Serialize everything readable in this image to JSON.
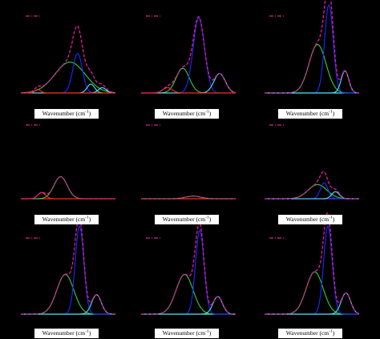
{
  "chart_data": [
    {
      "type": "line",
      "xlabel": "Wavenumber (cm",
      "xlabel_sup": "-1",
      "legend_visible": true,
      "baseline": "orange-red",
      "peaks": [
        {
          "color": "green",
          "center": 0.52,
          "width": 0.16,
          "height": 0.35
        },
        {
          "color": "blue",
          "center": 0.6,
          "width": 0.05,
          "height": 0.45
        },
        {
          "color": "cyan",
          "center": 0.74,
          "width": 0.04,
          "height": 0.1
        },
        {
          "color": "cyan",
          "center": 0.86,
          "width": 0.04,
          "height": 0.06
        },
        {
          "color": "red",
          "center": 0.18,
          "width": 0.03,
          "height": 0.04
        }
      ]
    },
    {
      "type": "line",
      "xlabel": "Wavenumber (cm",
      "xlabel_sup": "-1",
      "legend_visible": true,
      "baseline": "red",
      "peaks": [
        {
          "color": "green",
          "center": 0.44,
          "width": 0.07,
          "height": 0.28
        },
        {
          "color": "blue",
          "center": 0.61,
          "width": 0.06,
          "height": 0.85
        },
        {
          "color": "cyan",
          "center": 0.83,
          "width": 0.06,
          "height": 0.22
        },
        {
          "color": "red",
          "center": 0.28,
          "width": 0.05,
          "height": 0.06
        }
      ]
    },
    {
      "type": "line",
      "xlabel": "Wavenumber (cm",
      "xlabel_sup": "-1",
      "legend_visible": true,
      "baseline": "cyan",
      "peaks": [
        {
          "color": "green",
          "center": 0.56,
          "width": 0.09,
          "height": 0.55
        },
        {
          "color": "blue",
          "center": 0.68,
          "width": 0.045,
          "height": 1.0
        },
        {
          "color": "cyan",
          "center": 0.85,
          "width": 0.04,
          "height": 0.25
        }
      ]
    },
    {
      "type": "line",
      "xlabel": "Wavenumber (cm",
      "xlabel_sup": "-1",
      "legend_visible": true,
      "baseline": "red",
      "peaks": [
        {
          "color": "green",
          "center": 0.42,
          "width": 0.07,
          "height": 0.25
        },
        {
          "color": "red",
          "center": 0.22,
          "width": 0.04,
          "height": 0.07
        }
      ]
    },
    {
      "type": "line",
      "xlabel": "Wavenumber (cm",
      "xlabel_sup": "-1",
      "legend_visible": true,
      "baseline": "red",
      "peaks": [
        {
          "color": "green",
          "center": 0.55,
          "width": 0.08,
          "height": 0.03
        }
      ]
    },
    {
      "type": "line",
      "xlabel": "Wavenumber (cm",
      "xlabel_sup": "-1",
      "legend_visible": true,
      "baseline": "purple",
      "peaks": [
        {
          "color": "green",
          "center": 0.56,
          "width": 0.1,
          "height": 0.16
        },
        {
          "color": "blue",
          "center": 0.63,
          "width": 0.04,
          "height": 0.18
        },
        {
          "color": "cyan",
          "center": 0.75,
          "width": 0.04,
          "height": 0.08
        }
      ]
    },
    {
      "type": "line",
      "xlabel": "Wavenumber (cm",
      "xlabel_sup": "-1",
      "legend_visible": true,
      "baseline": "cyan",
      "peaks": [
        {
          "color": "green",
          "center": 0.47,
          "width": 0.09,
          "height": 0.45
        },
        {
          "color": "blue",
          "center": 0.62,
          "width": 0.045,
          "height": 1.0
        },
        {
          "color": "cyan",
          "center": 0.8,
          "width": 0.05,
          "height": 0.22
        }
      ]
    },
    {
      "type": "line",
      "xlabel": "Wavenumber (cm",
      "xlabel_sup": "-1",
      "legend_visible": true,
      "baseline": "cyan",
      "peaks": [
        {
          "color": "green",
          "center": 0.46,
          "width": 0.09,
          "height": 0.45
        },
        {
          "color": "blue",
          "center": 0.62,
          "width": 0.045,
          "height": 0.95
        },
        {
          "color": "cyan",
          "center": 0.81,
          "width": 0.05,
          "height": 0.2
        }
      ]
    },
    {
      "type": "line",
      "xlabel": "Wavenumber (cm",
      "xlabel_sup": "-1",
      "legend_visible": true,
      "baseline": "cyan",
      "peaks": [
        {
          "color": "green",
          "center": 0.53,
          "width": 0.09,
          "height": 0.48
        },
        {
          "color": "blue",
          "center": 0.67,
          "width": 0.045,
          "height": 1.0
        },
        {
          "color": "cyan",
          "center": 0.86,
          "width": 0.05,
          "height": 0.24
        }
      ]
    }
  ],
  "colors": {
    "green": "#2fd33b",
    "blue": "#1a2cff",
    "cyan": "#4fe8ff",
    "red": "#ff2a1a",
    "orange-red": "#ff5a10",
    "purple": "#6a2cff",
    "envelope": "#e01aa0",
    "legend": "#cc2a8a"
  }
}
